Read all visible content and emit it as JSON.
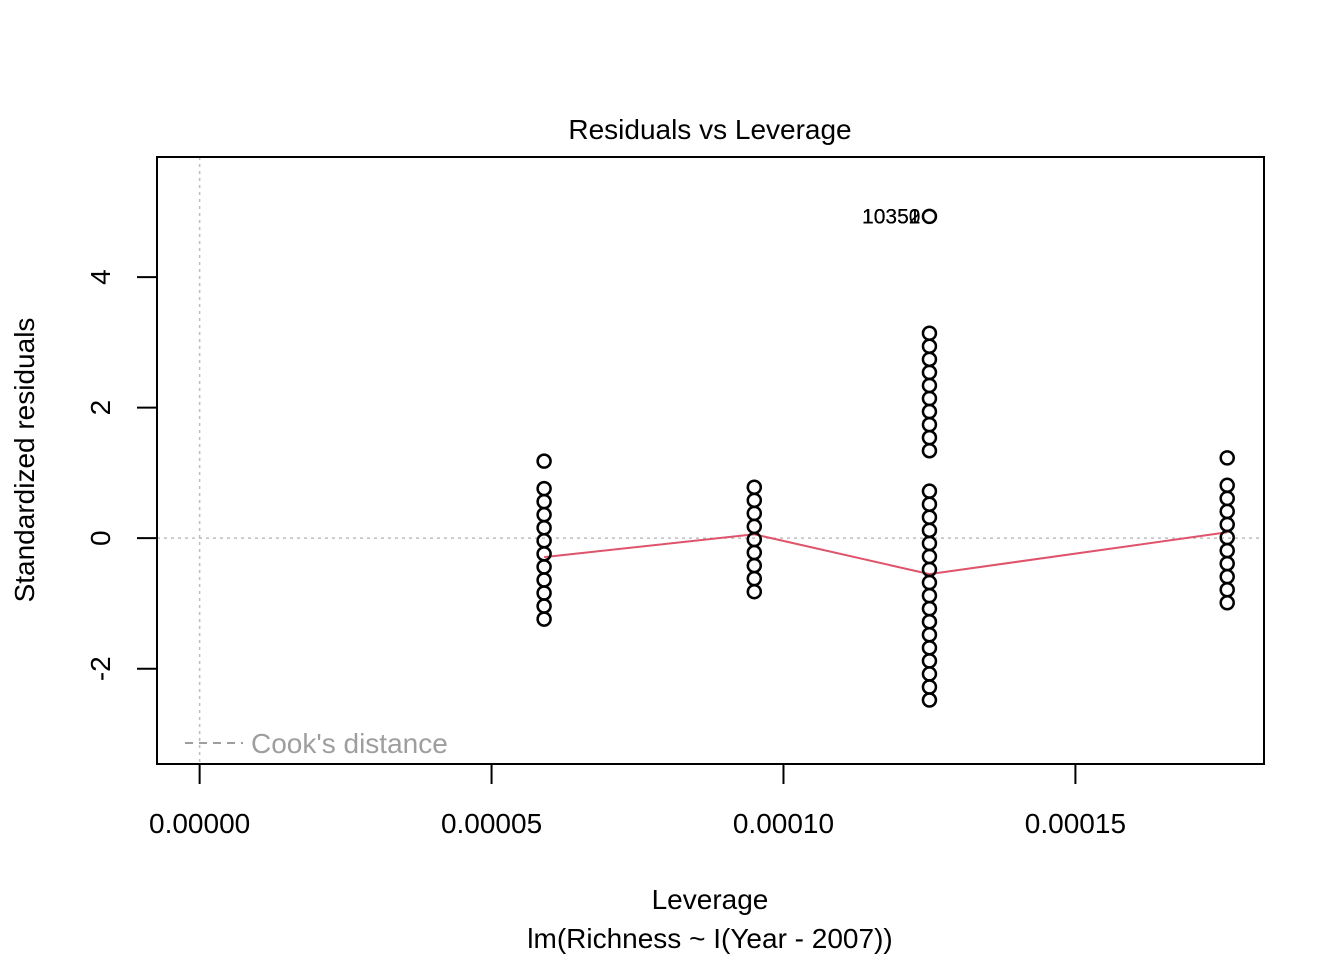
{
  "chart_data": {
    "type": "scatter",
    "title": "Residuals vs Leverage",
    "xlabel": "Leverage",
    "subtitle": "lm(Richness ~ I(Year - 2007))",
    "ylabel": "Standardized residuals",
    "xlim": [
      -7.3e-06,
      0.0001823
    ],
    "ylim": [
      -3.46,
      5.84
    ],
    "x_ticks": [
      {
        "value": 0.0,
        "label": "0.00000"
      },
      {
        "value": 5e-05,
        "label": "0.00005"
      },
      {
        "value": 0.0001,
        "label": "0.00010"
      },
      {
        "value": 0.00015,
        "label": "0.00015"
      }
    ],
    "y_ticks": [
      {
        "value": -2,
        "label": "-2"
      },
      {
        "value": 0,
        "label": "0"
      },
      {
        "value": 2,
        "label": "2"
      },
      {
        "value": 4,
        "label": "4"
      }
    ],
    "reference_lines": {
      "h": 0,
      "v": 0
    },
    "legend": {
      "label": "Cook's distance",
      "position": "bottom-left"
    },
    "colors": {
      "points": "#000000",
      "smoother": "#DF536B",
      "reference": "#BEBEBE",
      "legend_text": "#9E9E9E"
    },
    "groups": [
      {
        "x": 5.9e-05,
        "y": [
          -1.24,
          -1.04,
          -0.84,
          -0.64,
          -0.44,
          -0.24,
          -0.04,
          0.16,
          0.36,
          0.56,
          0.76,
          1.18
        ]
      },
      {
        "x": 9.5e-05,
        "y": [
          -0.82,
          -0.62,
          -0.42,
          -0.22,
          -0.02,
          0.18,
          0.38,
          0.58,
          0.78
        ]
      },
      {
        "x": 0.000125,
        "y": [
          -2.48,
          -2.28,
          -2.08,
          -1.88,
          -1.68,
          -1.48,
          -1.28,
          -1.08,
          -0.88,
          -0.68,
          -0.48,
          -0.28,
          -0.08,
          0.12,
          0.32,
          0.52,
          0.72,
          1.34,
          1.54,
          1.74,
          1.94,
          2.14,
          2.34,
          2.54,
          2.74,
          2.94,
          3.14,
          4.93
        ]
      },
      {
        "x": 0.000176,
        "y": [
          -0.99,
          -0.79,
          -0.59,
          -0.39,
          -0.19,
          0.01,
          0.21,
          0.41,
          0.61,
          0.81,
          1.23
        ]
      }
    ],
    "smoother": [
      {
        "x": 5.9e-05,
        "y": -0.29
      },
      {
        "x": 9.5e-05,
        "y": 0.06
      },
      {
        "x": 0.000125,
        "y": -0.55
      },
      {
        "x": 0.000176,
        "y": 0.09
      }
    ],
    "point_labels": [
      {
        "x": 0.000125,
        "y": 4.93,
        "text": "10350"
      },
      {
        "x": 0.000125,
        "y": 4.93,
        "text": "10351"
      },
      {
        "x": 0.000125,
        "y": 4.93,
        "text": "10352"
      }
    ]
  }
}
